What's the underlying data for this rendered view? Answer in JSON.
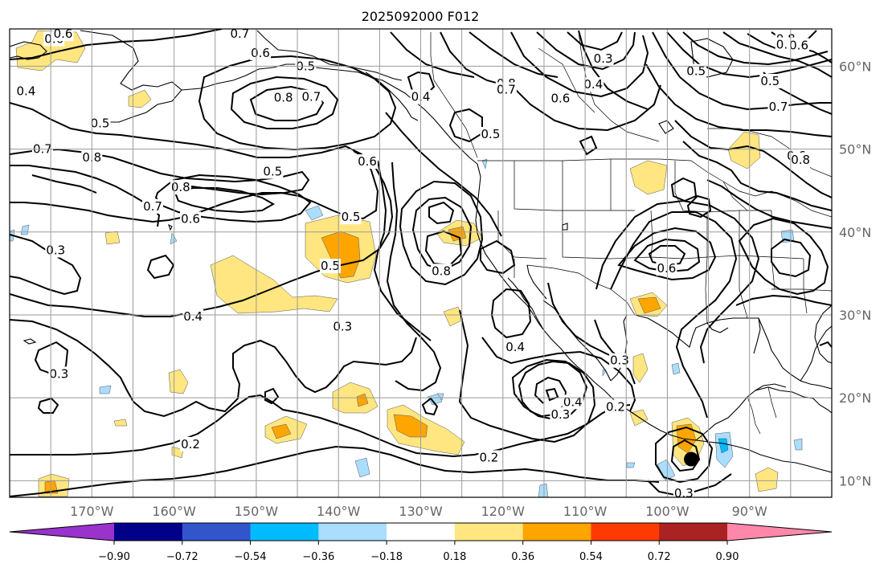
{
  "map": {
    "title": "2025092000 F012",
    "latitudes": [
      {
        "value": 60,
        "label": "60°N"
      },
      {
        "value": 50,
        "label": "50°N"
      },
      {
        "value": 40,
        "label": "40°N"
      },
      {
        "value": 30,
        "label": "30°N"
      },
      {
        "value": 20,
        "label": "20°N"
      },
      {
        "value": 10,
        "label": "10°N"
      }
    ],
    "longitudes": [
      {
        "value": -170,
        "label": "170°W"
      },
      {
        "value": -160,
        "label": "160°W"
      },
      {
        "value": -150,
        "label": "150°W"
      },
      {
        "value": -140,
        "label": "140°W"
      },
      {
        "value": -130,
        "label": "130°W"
      },
      {
        "value": -120,
        "label": "120°W"
      },
      {
        "value": -110,
        "label": "110°W"
      },
      {
        "value": -100,
        "label": "100°W"
      },
      {
        "value": -90,
        "label": "90°W"
      }
    ],
    "extent": {
      "lon_min": -180,
      "lon_max": -80,
      "lat_min": 8,
      "lat_max": 64.5
    },
    "contour_labels": [
      {
        "text": "0.6",
        "lon": -174.6,
        "lat": 63.3
      },
      {
        "text": "0.6",
        "lon": -173.5,
        "lat": 63.9
      },
      {
        "text": "0.7",
        "lon": -152,
        "lat": 63.9
      },
      {
        "text": "0.6",
        "lon": -149.5,
        "lat": 61.6
      },
      {
        "text": "0.5",
        "lon": -144,
        "lat": 60
      },
      {
        "text": "0.4",
        "lon": -178,
        "lat": 57
      },
      {
        "text": "0.8",
        "lon": -146.7,
        "lat": 56.2
      },
      {
        "text": "0.7",
        "lon": -143.3,
        "lat": 56.3
      },
      {
        "text": "0.5",
        "lon": -169,
        "lat": 53.1
      },
      {
        "text": "0.7",
        "lon": -176,
        "lat": 50
      },
      {
        "text": "0.8",
        "lon": -170,
        "lat": 49
      },
      {
        "text": "0.5",
        "lon": -148,
        "lat": 47.3
      },
      {
        "text": "0.8",
        "lon": -159.2,
        "lat": 45.4
      },
      {
        "text": "0.7",
        "lon": -162.6,
        "lat": 43.1
      },
      {
        "text": "0.6",
        "lon": -158,
        "lat": 41.6
      },
      {
        "text": "0.6",
        "lon": -136.5,
        "lat": 48.5
      },
      {
        "text": "0.5",
        "lon": -138.5,
        "lat": 41.8
      },
      {
        "text": "0.3",
        "lon": -174.4,
        "lat": 37.8
      },
      {
        "text": "0.5",
        "lon": -141,
        "lat": 35.9
      },
      {
        "text": "0.8",
        "lon": -127.5,
        "lat": 35.3
      },
      {
        "text": "0.4",
        "lon": -157.7,
        "lat": 29.8
      },
      {
        "text": "0.3",
        "lon": -139.5,
        "lat": 28.6
      },
      {
        "text": "0.3",
        "lon": -174,
        "lat": 22.9
      },
      {
        "text": "0.2",
        "lon": -158,
        "lat": 14.4
      },
      {
        "text": "0.2",
        "lon": -121.7,
        "lat": 12.8
      },
      {
        "text": "0.3",
        "lon": -113,
        "lat": 18
      },
      {
        "text": "0.4",
        "lon": -111.5,
        "lat": 19.5
      },
      {
        "text": "0.2",
        "lon": -106.3,
        "lat": 18.9
      },
      {
        "text": "0.4",
        "lon": -118.5,
        "lat": 26.1
      },
      {
        "text": "0.3",
        "lon": -105.8,
        "lat": 24.5
      },
      {
        "text": "0.6",
        "lon": -100.1,
        "lat": 35.6
      },
      {
        "text": "0.3",
        "lon": -98,
        "lat": 8.5
      },
      {
        "text": "0.8",
        "lon": -119.6,
        "lat": 57.9
      },
      {
        "text": "0.7",
        "lon": -119.6,
        "lat": 57.2
      },
      {
        "text": "0.4",
        "lon": -130,
        "lat": 56.3
      },
      {
        "text": "0.5",
        "lon": -121.5,
        "lat": 51.8
      },
      {
        "text": "0.6",
        "lon": -113,
        "lat": 56.1
      },
      {
        "text": "0.4",
        "lon": -109,
        "lat": 57.8
      },
      {
        "text": "0.3",
        "lon": -107.8,
        "lat": 60.9
      },
      {
        "text": "0.5",
        "lon": -96.5,
        "lat": 59.4
      },
      {
        "text": "0.5",
        "lon": -87.5,
        "lat": 58.2
      },
      {
        "text": "0.7",
        "lon": -86.5,
        "lat": 55.1
      },
      {
        "text": "0.8",
        "lon": -85.6,
        "lat": 63.3
      },
      {
        "text": "0.7",
        "lon": -85.6,
        "lat": 62.6
      },
      {
        "text": "0.6",
        "lon": -84,
        "lat": 62.5
      },
      {
        "text": "0.6",
        "lon": -84.3,
        "lat": 49.2
      },
      {
        "text": "0.8",
        "lon": -83.8,
        "lat": 48.7
      }
    ],
    "storm_marker": {
      "lon": -97.1,
      "lat": 12.6
    }
  },
  "colorbar": {
    "ticks": [
      "−0.90",
      "−0.72",
      "−0.54",
      "−0.36",
      "−0.18",
      "0.18",
      "0.36",
      "0.54",
      "0.72",
      "0.90"
    ],
    "colors": {
      "under": "#9933cc",
      "bins": [
        "#000088",
        "#3355cc",
        "#00bbff",
        "#aaddff",
        "#ffffff",
        "#ffe680",
        "#ffa500",
        "#ff3a00",
        "#aa2222"
      ],
      "over": "#ff88aa"
    }
  }
}
